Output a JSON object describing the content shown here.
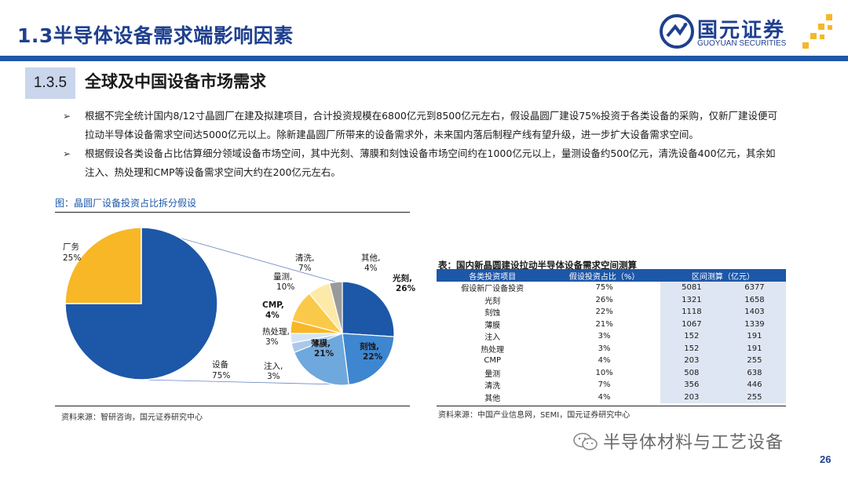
{
  "header": {
    "title": "1.3半导体设备需求端影响因素"
  },
  "logo": {
    "cn": "国元证券",
    "en": "GUOYUAN SECURITIES"
  },
  "section": {
    "number": "1.3.5",
    "title": "全球及中国设备市场需求"
  },
  "bullets": [
    "根据不完全统计国内8/12寸晶圆厂在建及拟建项目，合计投资规模在6800亿元到8500亿元左右，假设晶圆厂建设75%投资于各类设备的采购，仅新厂建设便可拉动半导体设备需求空间达5000亿元以上。除新建晶圆厂所带来的设备需求外，未来国内落后制程产线有望升级，进一步扩大设备需求空间。",
    "根据假设各类设备占比估算细分领域设备市场空间，其中光刻、薄膜和刻蚀设备市场空间约在1000亿元以上，量测设备约500亿元，清洗设备400亿元，其余如注入、热处理和CMP等设备需求空间大约在200亿元左右。"
  ],
  "figure": {
    "caption": "图：晶圆厂设备投资占比拆分假设",
    "source": "资料来源：智研咨询，国元证券研究中心"
  },
  "chart_data": [
    {
      "type": "pie",
      "title": "",
      "slices": [
        {
          "label": "厂务",
          "value": 25,
          "display": "25%",
          "color": "#f7b727"
        },
        {
          "label": "设备",
          "value": 75,
          "display": "75%",
          "color": "#1d57a8"
        }
      ]
    },
    {
      "type": "pie",
      "title": "",
      "slices": [
        {
          "label": "光刻,",
          "value": 26,
          "display": "26%",
          "color": "#1d57a8"
        },
        {
          "label": "刻蚀,",
          "value": 22,
          "display": "22%",
          "color": "#3e86d0"
        },
        {
          "label": "薄膜,",
          "value": 21,
          "display": "21%",
          "color": "#6fa8dc"
        },
        {
          "label": "注入,",
          "value": 3,
          "display": "3%",
          "color": "#a9c8ea"
        },
        {
          "label": "热处理,",
          "value": 3,
          "display": "3%",
          "color": "#d5e4f5"
        },
        {
          "label": "CMP,",
          "value": 4,
          "display": "4%",
          "color": "#f7b727"
        },
        {
          "label": "量测,",
          "value": 10,
          "display": "10%",
          "color": "#fbc94a"
        },
        {
          "label": "清洗,",
          "value": 7,
          "display": "7%",
          "color": "#fde9a8"
        },
        {
          "label": "其他,",
          "value": 4,
          "display": "4%",
          "color": "#9a9a9a"
        }
      ]
    }
  ],
  "table": {
    "caption": "表：国内新晶圆建设拉动半导体设备需求空间测算",
    "headers": [
      "各类投资项目",
      "假设投资占比（%）",
      "区间测算（亿元）"
    ],
    "rows": [
      [
        "假设新厂设备投资",
        "75%",
        "5081",
        "6377"
      ],
      [
        "光刻",
        "26%",
        "1321",
        "1658"
      ],
      [
        "刻蚀",
        "22%",
        "1118",
        "1403"
      ],
      [
        "薄膜",
        "21%",
        "1067",
        "1339"
      ],
      [
        "注入",
        "3%",
        "152",
        "191"
      ],
      [
        "热处理",
        "3%",
        "152",
        "191"
      ],
      [
        "CMP",
        "4%",
        "203",
        "255"
      ],
      [
        "量测",
        "10%",
        "508",
        "638"
      ],
      [
        "清洗",
        "7%",
        "356",
        "446"
      ],
      [
        "其他",
        "4%",
        "203",
        "255"
      ]
    ],
    "source": "资料来源：中国产业信息网，SEMI，国元证券研究中心"
  },
  "watermark": {
    "text": "半导体材料与工艺设备",
    "icon": "wechat-icon"
  },
  "page_number": "26"
}
